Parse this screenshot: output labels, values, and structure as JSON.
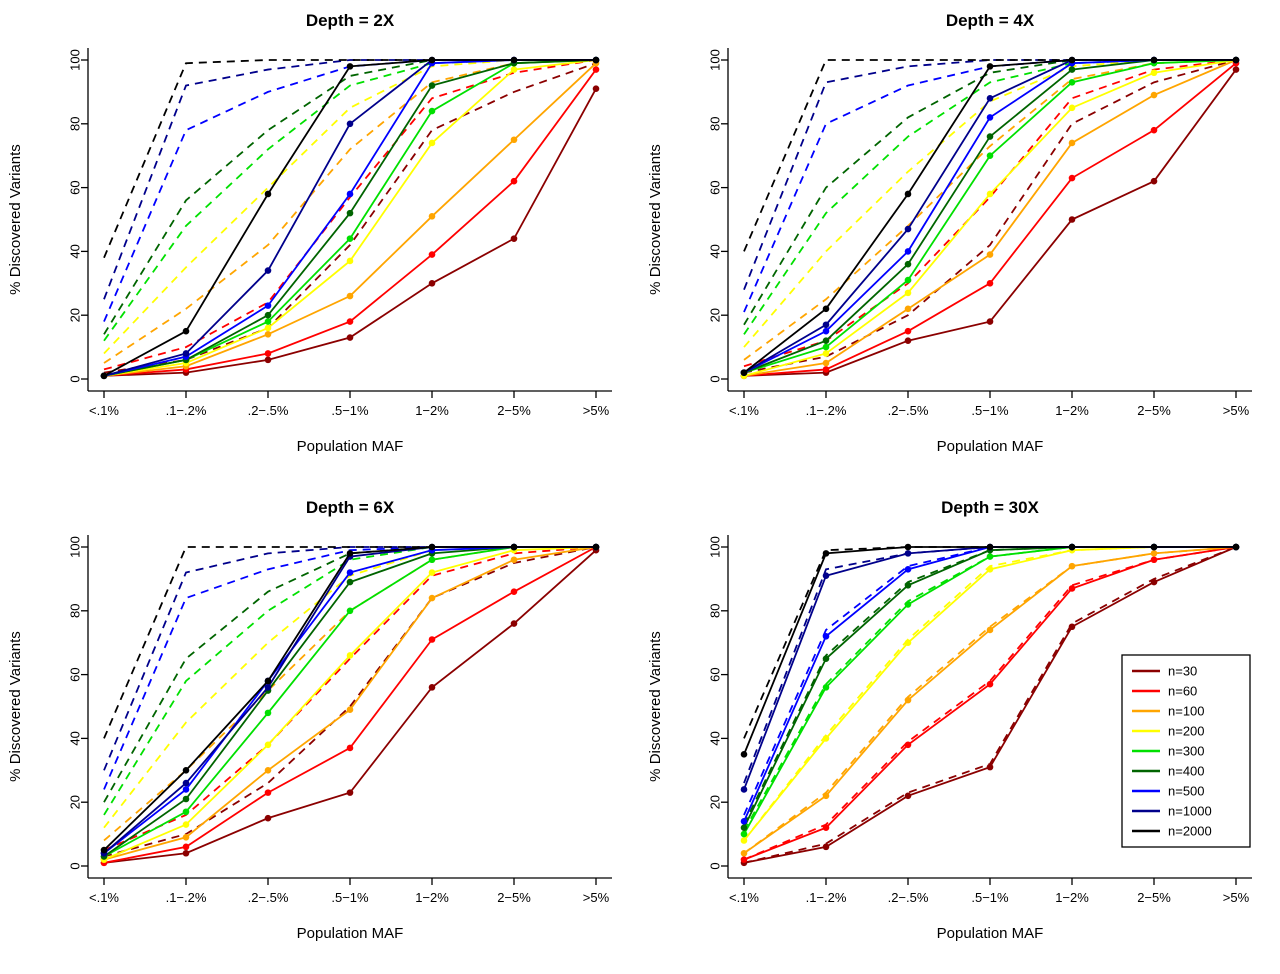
{
  "figure": {
    "xlabel": "Population MAF",
    "ylabel": "% Discovered Variants"
  },
  "chart_data": {
    "type": "line",
    "categories": [
      "<.1%",
      ".1−.2%",
      ".2−.5%",
      ".5−1%",
      "1−2%",
      "2−5%",
      ">5%"
    ],
    "xlabel": "Population MAF",
    "ylabel": "% Discovered Variants",
    "ylim": [
      0,
      100
    ],
    "yticks": [
      0,
      20,
      40,
      60,
      80,
      100
    ],
    "grid": false,
    "styles": {
      "solid_marker": "filled-circle",
      "dashed_pattern": "dashed",
      "dashed_has_marker": false
    },
    "series_colors": {
      "n=30": "#8B0000",
      "n=60": "#FF0000",
      "n=100": "#FFA500",
      "n=200": "#FFFF00",
      "n=300": "#00E000",
      "n=400": "#006400",
      "n=500": "#0000FF",
      "n=1000": "#00008B",
      "n=2000": "#000000"
    },
    "legend": {
      "panel_index": 3,
      "position": "right-middle",
      "entries": [
        "n=30",
        "n=60",
        "n=100",
        "n=200",
        "n=300",
        "n=400",
        "n=500",
        "n=1000",
        "n=2000"
      ]
    },
    "panels": [
      {
        "title": "Depth = 2X",
        "series": [
          {
            "name": "n=30",
            "solid": [
              1,
              2,
              6,
              13,
              30,
              44,
              91
            ],
            "dashed": [
              2,
              6,
              16,
              42,
              78,
              90,
              99
            ]
          },
          {
            "name": "n=60",
            "solid": [
              1,
              3,
              8,
              18,
              39,
              62,
              97
            ],
            "dashed": [
              3,
              10,
              24,
              57,
              88,
              96,
              100
            ]
          },
          {
            "name": "n=100",
            "solid": [
              1,
              4,
              14,
              26,
              51,
              75,
              99
            ],
            "dashed": [
              5,
              22,
              42,
              72,
              93,
              99,
              100
            ]
          },
          {
            "name": "n=200",
            "solid": [
              1,
              5,
              16,
              37,
              74,
              97,
              100
            ],
            "dashed": [
              8,
              35,
              60,
              85,
              98,
              100,
              100
            ]
          },
          {
            "name": "n=300",
            "solid": [
              1,
              6,
              18,
              44,
              84,
              99,
              100
            ],
            "dashed": [
              12,
              48,
              72,
              92,
              99,
              100,
              100
            ]
          },
          {
            "name": "n=400",
            "solid": [
              1,
              6,
              20,
              52,
              92,
              99,
              100
            ],
            "dashed": [
              14,
              56,
              78,
              95,
              100,
              100,
              100
            ]
          },
          {
            "name": "n=500",
            "solid": [
              1,
              7,
              23,
              58,
              99,
              100,
              100
            ],
            "dashed": [
              18,
              78,
              90,
              98,
              100,
              100,
              100
            ]
          },
          {
            "name": "n=1000",
            "solid": [
              1,
              8,
              34,
              80,
              100,
              100,
              100
            ],
            "dashed": [
              25,
              92,
              97,
              100,
              100,
              100,
              100
            ]
          },
          {
            "name": "n=2000",
            "solid": [
              1,
              15,
              58,
              98,
              100,
              100,
              100
            ],
            "dashed": [
              38,
              99,
              100,
              100,
              100,
              100,
              100
            ]
          }
        ]
      },
      {
        "title": "Depth = 4X",
        "series": [
          {
            "name": "n=30",
            "solid": [
              1,
              2,
              12,
              18,
              50,
              62,
              97
            ],
            "dashed": [
              2,
              7,
              20,
              42,
              80,
              93,
              100
            ]
          },
          {
            "name": "n=60",
            "solid": [
              1,
              3,
              15,
              30,
              63,
              78,
              99
            ],
            "dashed": [
              4,
              12,
              30,
              57,
              88,
              97,
              100
            ]
          },
          {
            "name": "n=100",
            "solid": [
              1,
              5,
              22,
              39,
              74,
              89,
              100
            ],
            "dashed": [
              6,
              25,
              48,
              73,
              94,
              99,
              100
            ]
          },
          {
            "name": "n=200",
            "solid": [
              1,
              8,
              27,
              58,
              85,
              96,
              100
            ],
            "dashed": [
              10,
              40,
              65,
              87,
              98,
              100,
              100
            ]
          },
          {
            "name": "n=300",
            "solid": [
              2,
              10,
              31,
              70,
              93,
              99,
              100
            ],
            "dashed": [
              14,
              52,
              76,
              93,
              99,
              100,
              100
            ]
          },
          {
            "name": "n=400",
            "solid": [
              2,
              12,
              36,
              76,
              97,
              100,
              100
            ],
            "dashed": [
              17,
              60,
              82,
              96,
              100,
              100,
              100
            ]
          },
          {
            "name": "n=500",
            "solid": [
              2,
              15,
              40,
              82,
              99,
              100,
              100
            ],
            "dashed": [
              21,
              80,
              92,
              98,
              100,
              100,
              100
            ]
          },
          {
            "name": "n=1000",
            "solid": [
              2,
              17,
              47,
              88,
              100,
              100,
              100
            ],
            "dashed": [
              28,
              93,
              98,
              100,
              100,
              100,
              100
            ]
          },
          {
            "name": "n=2000",
            "solid": [
              2,
              22,
              58,
              98,
              100,
              100,
              100
            ],
            "dashed": [
              40,
              100,
              100,
              100,
              100,
              100,
              100
            ]
          }
        ]
      },
      {
        "title": "Depth = 6X",
        "series": [
          {
            "name": "n=30",
            "solid": [
              1,
              4,
              15,
              23,
              56,
              76,
              99
            ],
            "dashed": [
              3,
              10,
              26,
              50,
              84,
              95,
              100
            ]
          },
          {
            "name": "n=60",
            "solid": [
              1,
              6,
              23,
              37,
              71,
              86,
              100
            ],
            "dashed": [
              5,
              16,
              38,
              65,
              91,
              98,
              100
            ]
          },
          {
            "name": "n=100",
            "solid": [
              2,
              9,
              30,
              49,
              84,
              96,
              100
            ],
            "dashed": [
              8,
              30,
              55,
              80,
              96,
              100,
              100
            ]
          },
          {
            "name": "n=200",
            "solid": [
              2,
              13,
              38,
              66,
              92,
              99,
              100
            ],
            "dashed": [
              12,
              45,
              70,
              91,
              99,
              100,
              100
            ]
          },
          {
            "name": "n=300",
            "solid": [
              3,
              17,
              48,
              80,
              96,
              100,
              100
            ],
            "dashed": [
              16,
              58,
              80,
              96,
              100,
              100,
              100
            ]
          },
          {
            "name": "n=400",
            "solid": [
              3,
              21,
              55,
              89,
              98,
              100,
              100
            ],
            "dashed": [
              20,
              65,
              86,
              98,
              100,
              100,
              100
            ]
          },
          {
            "name": "n=500",
            "solid": [
              4,
              24,
              58,
              92,
              99,
              100,
              100
            ],
            "dashed": [
              24,
              84,
              93,
              99,
              100,
              100,
              100
            ]
          },
          {
            "name": "n=1000",
            "solid": [
              4,
              26,
              56,
              97,
              100,
              100,
              100
            ],
            "dashed": [
              30,
              92,
              98,
              100,
              100,
              100,
              100
            ]
          },
          {
            "name": "n=2000",
            "solid": [
              5,
              30,
              58,
              98,
              100,
              100,
              100
            ],
            "dashed": [
              40,
              100,
              100,
              100,
              100,
              100,
              100
            ]
          }
        ]
      },
      {
        "title": "Depth = 30X",
        "series": [
          {
            "name": "n=30",
            "solid": [
              1,
              6,
              22,
              31,
              75,
              89,
              100
            ],
            "dashed": [
              1,
              7,
              23,
              32,
              76,
              90,
              100
            ]
          },
          {
            "name": "n=60",
            "solid": [
              2,
              12,
              38,
              57,
              87,
              96,
              100
            ],
            "dashed": [
              2,
              13,
              39,
              58,
              88,
              96,
              100
            ]
          },
          {
            "name": "n=100",
            "solid": [
              4,
              22,
              52,
              74,
              94,
              98,
              100
            ],
            "dashed": [
              4,
              23,
              53,
              75,
              94,
              98,
              100
            ]
          },
          {
            "name": "n=200",
            "solid": [
              8,
              40,
              70,
              93,
              99,
              100,
              100
            ],
            "dashed": [
              8,
              41,
              71,
              94,
              99,
              100,
              100
            ]
          },
          {
            "name": "n=300",
            "solid": [
              10,
              56,
              82,
              97,
              100,
              100,
              100
            ],
            "dashed": [
              11,
              57,
              83,
              97,
              100,
              100,
              100
            ]
          },
          {
            "name": "n=400",
            "solid": [
              12,
              65,
              88,
              99,
              100,
              100,
              100
            ],
            "dashed": [
              13,
              66,
              89,
              99,
              100,
              100,
              100
            ]
          },
          {
            "name": "n=500",
            "solid": [
              14,
              72,
              93,
              100,
              100,
              100,
              100
            ],
            "dashed": [
              16,
              74,
              94,
              100,
              100,
              100,
              100
            ]
          },
          {
            "name": "n=1000",
            "solid": [
              24,
              91,
              98,
              100,
              100,
              100,
              100
            ],
            "dashed": [
              26,
              93,
              98,
              100,
              100,
              100,
              100
            ]
          },
          {
            "name": "n=2000",
            "solid": [
              35,
              98,
              100,
              100,
              100,
              100,
              100
            ],
            "dashed": [
              40,
              99,
              100,
              100,
              100,
              100,
              100
            ]
          }
        ]
      }
    ]
  }
}
